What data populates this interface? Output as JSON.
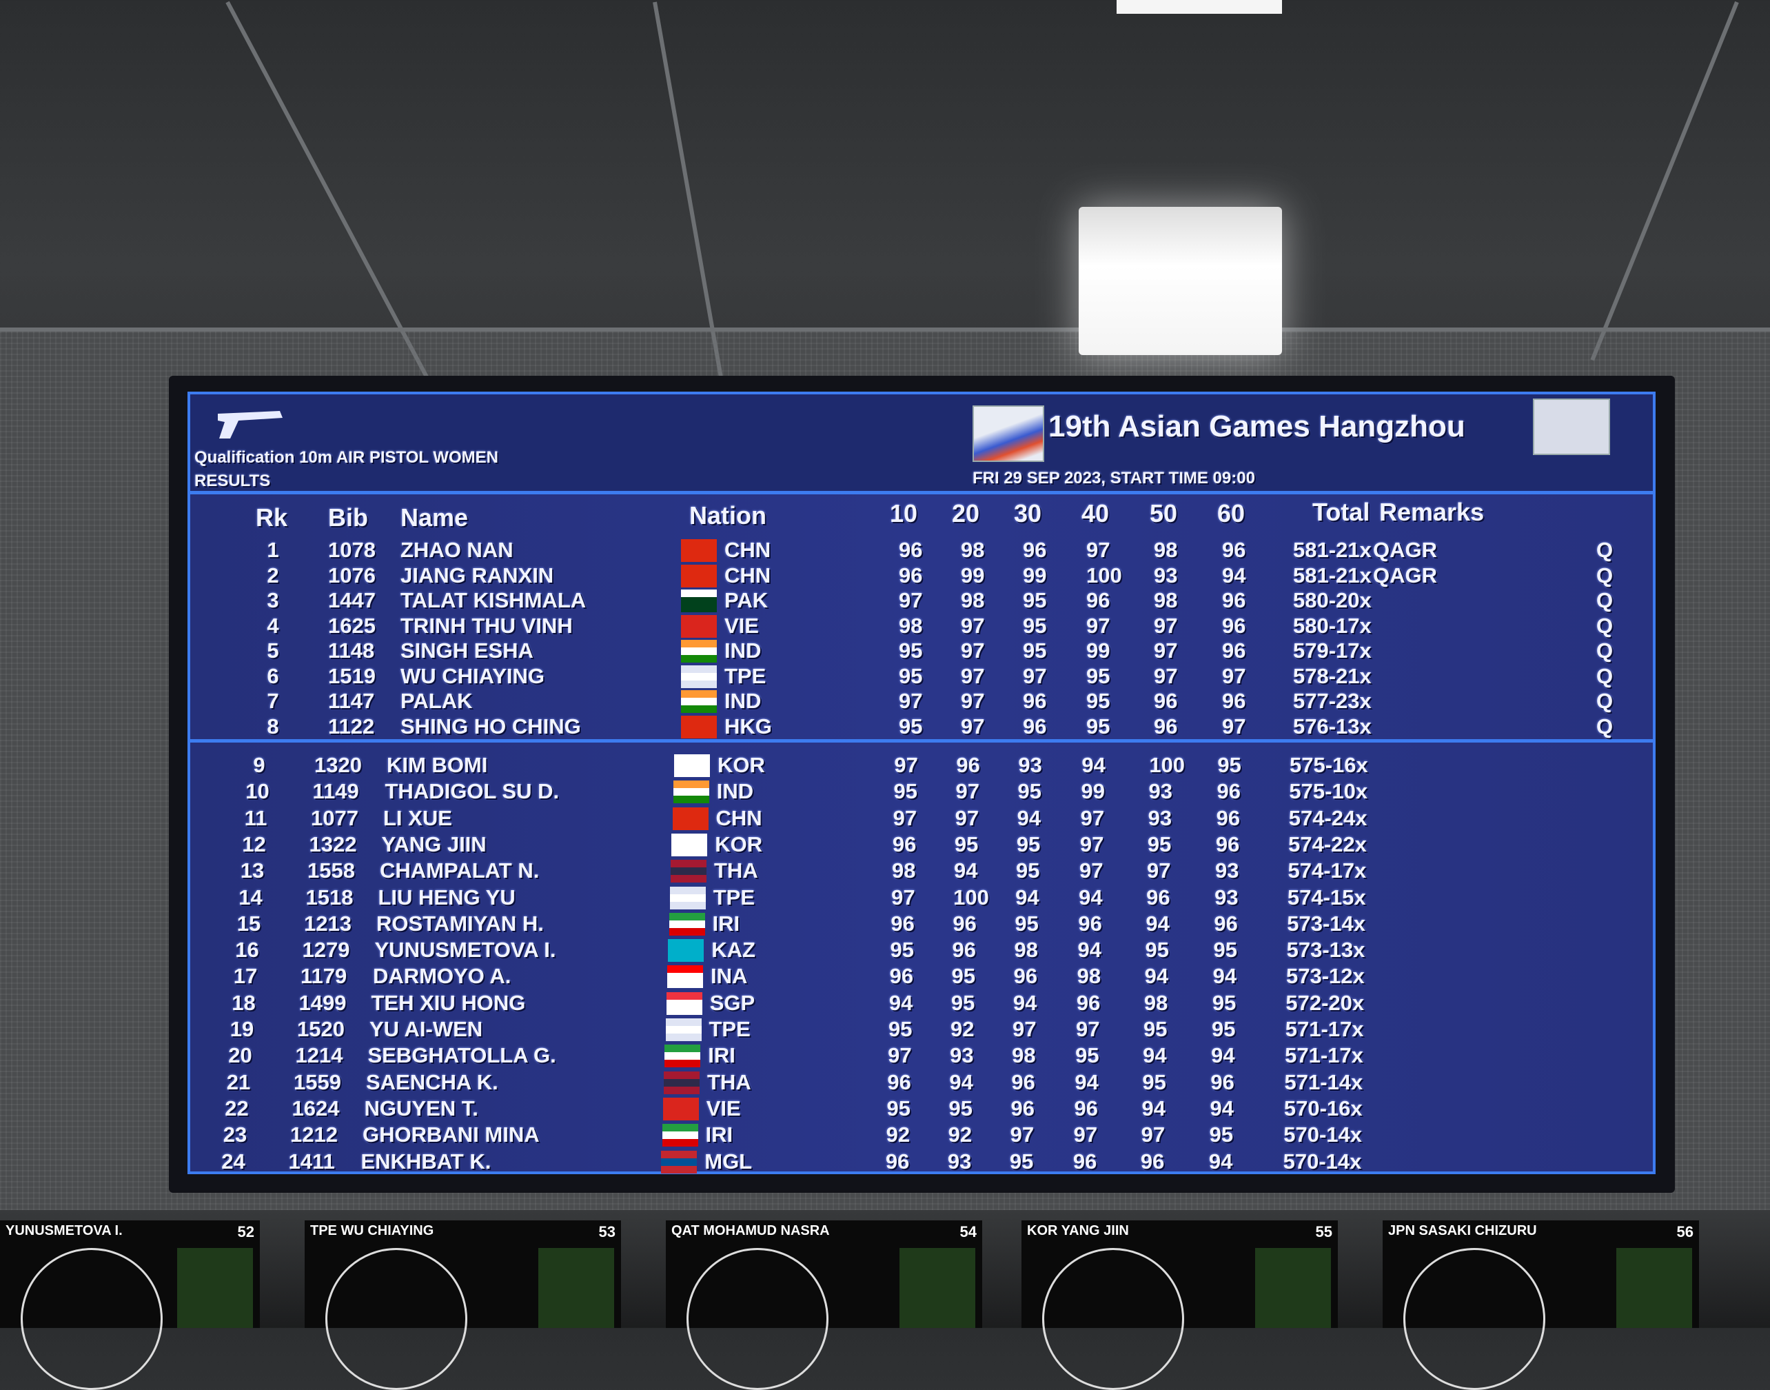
{
  "header": {
    "event": "Qualification 10m AIR PISTOL WOMEN",
    "section": "RESULTS",
    "games_title": "19th Asian Games Hangzhou",
    "date_line": "FRI 29 SEP 2023, START TIME 09:00",
    "pistol_icon": "pistol-icon",
    "games_logo": "asian-games-logo",
    "sport_pictogram": "shooting-pictogram"
  },
  "columns": {
    "rk": "Rk",
    "bib": "Bib",
    "name": "Name",
    "nation": "Nation",
    "s1": "10",
    "s2": "20",
    "s3": "30",
    "s4": "40",
    "s5": "50",
    "s6": "60",
    "total": "Total",
    "remarks": "Remarks"
  },
  "accent_color": "#3d7cf0",
  "board_color": "#25307a",
  "flags": {
    "CHN": [
      "#de2910",
      "#de2910",
      "#de2910"
    ],
    "PAK": [
      "#ffffff",
      "#01411c",
      "#01411c"
    ],
    "VIE": [
      "#da251d",
      "#da251d",
      "#da251d"
    ],
    "IND": [
      "#ff9933",
      "#ffffff",
      "#138808"
    ],
    "TPE": [
      "#dfe4f4",
      "#ffffff",
      "#dfe4f4"
    ],
    "HKG": [
      "#de2910",
      "#de2910",
      "#de2910"
    ],
    "KOR": [
      "#ffffff",
      "#ffffff",
      "#ffffff"
    ],
    "THA": [
      "#a51931",
      "#2d2a4a",
      "#a51931"
    ],
    "IRI": [
      "#239f40",
      "#ffffff",
      "#da0000"
    ],
    "KAZ": [
      "#00afca",
      "#00afca",
      "#00afca"
    ],
    "INA": [
      "#ff0000",
      "#ffffff",
      "#ffffff"
    ],
    "SGP": [
      "#ef3340",
      "#ffffff",
      "#ffffff"
    ],
    "MGL": [
      "#c4272f",
      "#015197",
      "#c4272f"
    ]
  },
  "rows": [
    {
      "rk": "1",
      "bib": "1078",
      "name": "ZHAO NAN",
      "nation": "CHN",
      "series": [
        "96",
        "98",
        "96",
        "97",
        "98",
        "96"
      ],
      "total": "581-21x",
      "remarks": "QAGR",
      "q": "Q"
    },
    {
      "rk": "2",
      "bib": "1076",
      "name": "JIANG RANXIN",
      "nation": "CHN",
      "series": [
        "96",
        "99",
        "99",
        "100",
        "93",
        "94"
      ],
      "total": "581-21x",
      "remarks": "QAGR",
      "q": "Q"
    },
    {
      "rk": "3",
      "bib": "1447",
      "name": "TALAT KISHMALA",
      "nation": "PAK",
      "series": [
        "97",
        "98",
        "95",
        "96",
        "98",
        "96"
      ],
      "total": "580-20x",
      "remarks": "",
      "q": "Q"
    },
    {
      "rk": "4",
      "bib": "1625",
      "name": "TRINH THU VINH",
      "nation": "VIE",
      "series": [
        "98",
        "97",
        "95",
        "97",
        "97",
        "96"
      ],
      "total": "580-17x",
      "remarks": "",
      "q": "Q"
    },
    {
      "rk": "5",
      "bib": "1148",
      "name": "SINGH ESHA",
      "nation": "IND",
      "series": [
        "95",
        "97",
        "95",
        "99",
        "97",
        "96"
      ],
      "total": "579-17x",
      "remarks": "",
      "q": "Q"
    },
    {
      "rk": "6",
      "bib": "1519",
      "name": "WU CHIAYING",
      "nation": "TPE",
      "series": [
        "95",
        "97",
        "97",
        "95",
        "97",
        "97"
      ],
      "total": "578-21x",
      "remarks": "",
      "q": "Q"
    },
    {
      "rk": "7",
      "bib": "1147",
      "name": "PALAK",
      "nation": "IND",
      "series": [
        "97",
        "97",
        "96",
        "95",
        "96",
        "96"
      ],
      "total": "577-23x",
      "remarks": "",
      "q": "Q"
    },
    {
      "rk": "8",
      "bib": "1122",
      "name": "SHING HO CHING",
      "nation": "HKG",
      "series": [
        "95",
        "97",
        "96",
        "95",
        "96",
        "97"
      ],
      "total": "576-13x",
      "remarks": "",
      "q": "Q"
    },
    {
      "rk": "9",
      "bib": "1320",
      "name": "KIM BOMI",
      "nation": "KOR",
      "series": [
        "97",
        "96",
        "93",
        "94",
        "100",
        "95"
      ],
      "total": "575-16x",
      "remarks": "",
      "q": ""
    },
    {
      "rk": "10",
      "bib": "1149",
      "name": "THADIGOL SU D.",
      "nation": "IND",
      "series": [
        "95",
        "97",
        "95",
        "99",
        "93",
        "96"
      ],
      "total": "575-10x",
      "remarks": "",
      "q": ""
    },
    {
      "rk": "11",
      "bib": "1077",
      "name": "LI XUE",
      "nation": "CHN",
      "series": [
        "97",
        "97",
        "94",
        "97",
        "93",
        "96"
      ],
      "total": "574-24x",
      "remarks": "",
      "q": ""
    },
    {
      "rk": "12",
      "bib": "1322",
      "name": "YANG JIIN",
      "nation": "KOR",
      "series": [
        "96",
        "95",
        "95",
        "97",
        "95",
        "96"
      ],
      "total": "574-22x",
      "remarks": "",
      "q": ""
    },
    {
      "rk": "13",
      "bib": "1558",
      "name": "CHAMPALAT N.",
      "nation": "THA",
      "series": [
        "98",
        "94",
        "95",
        "97",
        "97",
        "93"
      ],
      "total": "574-17x",
      "remarks": "",
      "q": ""
    },
    {
      "rk": "14",
      "bib": "1518",
      "name": "LIU HENG YU",
      "nation": "TPE",
      "series": [
        "97",
        "100",
        "94",
        "94",
        "96",
        "93"
      ],
      "total": "574-15x",
      "remarks": "",
      "q": ""
    },
    {
      "rk": "15",
      "bib": "1213",
      "name": "ROSTAMIYAN H.",
      "nation": "IRI",
      "series": [
        "96",
        "96",
        "95",
        "96",
        "94",
        "96"
      ],
      "total": "573-14x",
      "remarks": "",
      "q": ""
    },
    {
      "rk": "16",
      "bib": "1279",
      "name": "YUNUSMETOVA I.",
      "nation": "KAZ",
      "series": [
        "95",
        "96",
        "98",
        "94",
        "95",
        "95"
      ],
      "total": "573-13x",
      "remarks": "",
      "q": ""
    },
    {
      "rk": "17",
      "bib": "1179",
      "name": "DARMOYO A.",
      "nation": "INA",
      "series": [
        "96",
        "95",
        "96",
        "98",
        "94",
        "94"
      ],
      "total": "573-12x",
      "remarks": "",
      "q": ""
    },
    {
      "rk": "18",
      "bib": "1499",
      "name": "TEH XIU HONG",
      "nation": "SGP",
      "series": [
        "94",
        "95",
        "94",
        "96",
        "98",
        "95"
      ],
      "total": "572-20x",
      "remarks": "",
      "q": ""
    },
    {
      "rk": "19",
      "bib": "1520",
      "name": "YU AI-WEN",
      "nation": "TPE",
      "series": [
        "95",
        "92",
        "97",
        "97",
        "95",
        "95"
      ],
      "total": "571-17x",
      "remarks": "",
      "q": ""
    },
    {
      "rk": "20",
      "bib": "1214",
      "name": "SEBGHATOLLA G.",
      "nation": "IRI",
      "series": [
        "97",
        "93",
        "98",
        "95",
        "94",
        "94"
      ],
      "total": "571-17x",
      "remarks": "",
      "q": ""
    },
    {
      "rk": "21",
      "bib": "1559",
      "name": "SAENCHA K.",
      "nation": "THA",
      "series": [
        "96",
        "94",
        "96",
        "94",
        "95",
        "96"
      ],
      "total": "571-14x",
      "remarks": "",
      "q": ""
    },
    {
      "rk": "22",
      "bib": "1624",
      "name": "NGUYEN T.",
      "nation": "VIE",
      "series": [
        "95",
        "95",
        "96",
        "96",
        "94",
        "94"
      ],
      "total": "570-16x",
      "remarks": "",
      "q": ""
    },
    {
      "rk": "23",
      "bib": "1212",
      "name": "GHORBANI MINA",
      "nation": "IRI",
      "series": [
        "92",
        "92",
        "97",
        "97",
        "97",
        "95"
      ],
      "total": "570-14x",
      "remarks": "",
      "q": ""
    },
    {
      "rk": "24",
      "bib": "1411",
      "name": "ENKHBAT K.",
      "nation": "MGL",
      "series": [
        "96",
        "93",
        "95",
        "96",
        "96",
        "94"
      ],
      "total": "570-14x",
      "remarks": "",
      "q": ""
    }
  ],
  "monitors": [
    {
      "label": "YUNUSMETOVA I.",
      "lane": "52"
    },
    {
      "label": "TPE  WU CHIAYING",
      "lane": "53"
    },
    {
      "label": "QAT  MOHAMUD NASRA",
      "lane": "54"
    },
    {
      "label": "KOR  YANG JIIN",
      "lane": "55"
    },
    {
      "label": "JPN  SASAKI CHIZURU",
      "lane": "56"
    }
  ]
}
